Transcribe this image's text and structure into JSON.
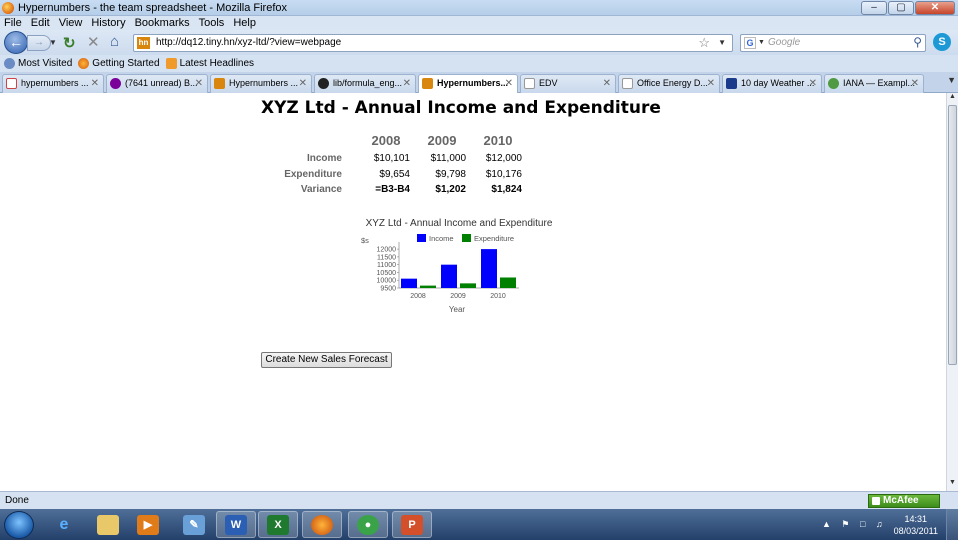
{
  "window": {
    "title": "Hypernumbers - the team spreadsheet - Mozilla Firefox",
    "buttons": {
      "minimize": "–",
      "maximize": "▢",
      "close": "✕"
    }
  },
  "menu": [
    "File",
    "Edit",
    "View",
    "History",
    "Bookmarks",
    "Tools",
    "Help"
  ],
  "nav": {
    "url": "http://dq12.tiny.hn/xyz-ltd/?view=webpage",
    "favicon_text": "hn",
    "search_placeholder": "Google"
  },
  "bookmarks": [
    "Most Visited",
    "Getting Started",
    "Latest Headlines"
  ],
  "tabs": [
    {
      "label": "hypernumbers ...",
      "icon": "gmail-icon"
    },
    {
      "label": "(7641 unread) B...",
      "icon": "yahoo-icon"
    },
    {
      "label": "Hypernumbers ...",
      "icon": "hn-icon"
    },
    {
      "label": "lib/formula_eng...",
      "icon": "github-icon"
    },
    {
      "label": "Hypernumbers...",
      "icon": "hn-icon",
      "active": true
    },
    {
      "label": "EDV",
      "icon": "page-icon"
    },
    {
      "label": "Office Energy D...",
      "icon": "page-icon"
    },
    {
      "label": "10 day Weather ...",
      "icon": "weather-icon"
    },
    {
      "label": "IANA — Exampl...",
      "icon": "iana-icon"
    }
  ],
  "page": {
    "title": "XYZ Ltd - Annual Income and Expenditure",
    "years": [
      "2008",
      "2009",
      "2010"
    ],
    "rows": [
      {
        "label": "Income",
        "values": [
          "$10,101",
          "$11,000",
          "$12,000"
        ],
        "bold": false
      },
      {
        "label": "Expenditure",
        "values": [
          "$9,654",
          "$9,798",
          "$10,176"
        ],
        "bold": false
      },
      {
        "label": "Variance",
        "values": [
          "=B3-B4",
          "$1,202",
          "$1,824"
        ],
        "bold": true
      }
    ],
    "button_label": "Create New Sales Forecast"
  },
  "chart_data": {
    "type": "bar",
    "title": "XYZ Ltd - Annual Income and Expenditure",
    "categories": [
      "2008",
      "2009",
      "2010"
    ],
    "series": [
      {
        "name": "Income",
        "values": [
          10101,
          11000,
          12000
        ],
        "color": "#0000ff"
      },
      {
        "name": "Expenditure",
        "values": [
          9654,
          9798,
          10176
        ],
        "color": "#008000"
      }
    ],
    "xlabel": "Year",
    "ylabel": "$s",
    "yticks": [
      9500,
      10000,
      10500,
      11000,
      11500,
      12000
    ],
    "ylim": [
      9500,
      12200
    ],
    "legend": "top",
    "grid": false
  },
  "status": {
    "text": "Done",
    "mcafee": "McAfee"
  },
  "taskbar": {
    "apps": [
      "ie",
      "explorer",
      "media-player",
      "paint",
      "word",
      "excel",
      "firefox",
      "app-green",
      "powerpoint"
    ],
    "time": "14:31",
    "date": "08/03/2011"
  }
}
